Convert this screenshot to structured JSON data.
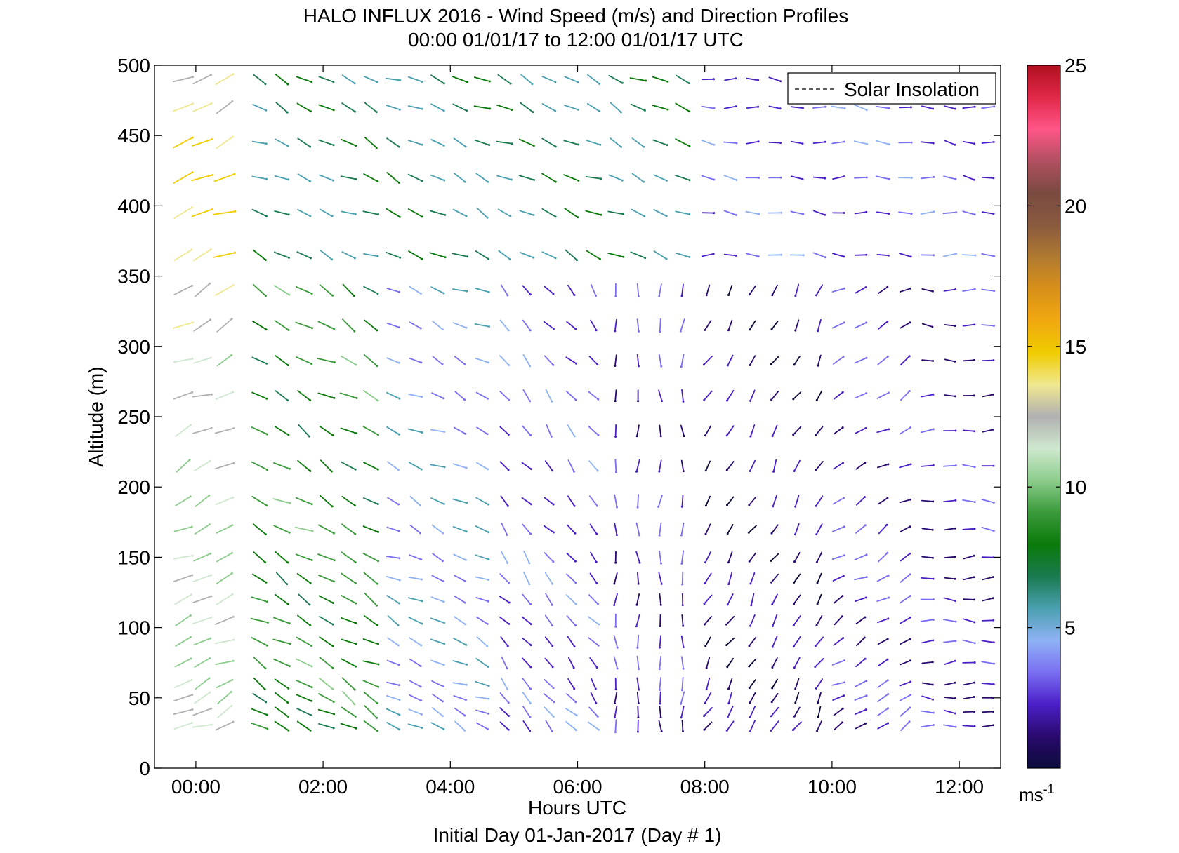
{
  "chart_data": {
    "type": "quiver",
    "title": "HALO INFLUX 2016 - Wind Speed (m/s) and Direction Profiles",
    "subtitle": "00:00 01/01/17 to 12:00 01/01/17  UTC",
    "xlabel": "Hours UTC",
    "xlabel2": "Initial Day 01-Jan-2017 (Day # 1)",
    "ylabel": "Altitude (m)",
    "xlim": [
      -0.65,
      12.65
    ],
    "ylim": [
      0,
      500
    ],
    "xticks": [
      0,
      2,
      4,
      6,
      8,
      10,
      12
    ],
    "xtick_labels": [
      "00:00",
      "02:00",
      "04:00",
      "06:00",
      "08:00",
      "10:00",
      "12:00"
    ],
    "yticks": [
      0,
      50,
      100,
      150,
      200,
      250,
      300,
      350,
      400,
      450,
      500
    ],
    "ytick_labels": [
      "0",
      "50",
      "100",
      "150",
      "200",
      "250",
      "300",
      "350",
      "400",
      "450",
      "500"
    ],
    "legend": {
      "entries": [
        "Solar Insolation"
      ],
      "position": "top-right",
      "style": "dashed"
    },
    "colorbar": {
      "range": [
        0,
        25
      ],
      "ticks": [
        5,
        10,
        15,
        20,
        25
      ],
      "tick_labels": [
        "5",
        "10",
        "15",
        "20",
        "25"
      ],
      "unit": "ms",
      "unit_sup": "-1",
      "colors": [
        "#0b0b3a",
        "#2a0a6e",
        "#4b1fc7",
        "#7a6ff2",
        "#8fb2f4",
        "#4aa0b0",
        "#1a7a50",
        "#0a7a0a",
        "#3a9a3a",
        "#8ccc8c",
        "#cfe8cf",
        "#b0b0b0",
        "#f0e890",
        "#f0cc00",
        "#f0a810",
        "#d8901a",
        "#b07a30",
        "#8a5a40",
        "#7a4a40",
        "#b05060",
        "#ff5588",
        "#e02848",
        "#b01020"
      ]
    },
    "times": [
      -0.2,
      0.1,
      0.45,
      1.0,
      1.35,
      1.7,
      2.05,
      2.4,
      2.75,
      3.1,
      3.45,
      3.8,
      4.15,
      4.5,
      4.85,
      5.2,
      5.55,
      5.9,
      6.25,
      6.6,
      6.95,
      7.3,
      7.65,
      8.05,
      8.4,
      8.75,
      9.1,
      9.45,
      9.8,
      10.1,
      10.45,
      10.8,
      11.15,
      11.5,
      11.85,
      12.15,
      12.45
    ],
    "altitudes": [
      30,
      40,
      50,
      60,
      75,
      90,
      105,
      120,
      135,
      150,
      170,
      190,
      215,
      240,
      265,
      290,
      315,
      340,
      365,
      395,
      420,
      445,
      470,
      490
    ],
    "regimes": [
      {
        "t_min": -1,
        "t_max": 0.8,
        "direction_deg": 245,
        "speed_ms": 11.0
      },
      {
        "t_min": 0.8,
        "t_max": 3.0,
        "direction_deg": 300,
        "speed_ms": 8.5
      },
      {
        "t_min": 3.0,
        "t_max": 4.8,
        "direction_deg": 295,
        "speed_ms": 4.5
      },
      {
        "t_min": 4.8,
        "t_max": 6.5,
        "direction_deg": 320,
        "speed_ms": 3.0
      },
      {
        "t_min": 6.5,
        "t_max": 8.0,
        "direction_deg": 0,
        "speed_ms": 2.5
      },
      {
        "t_min": 8.0,
        "t_max": 10.0,
        "direction_deg": 30,
        "speed_ms": 1.5
      },
      {
        "t_min": 10.0,
        "t_max": 11.5,
        "direction_deg": 240,
        "speed_ms": 2.5
      },
      {
        "t_min": 11.5,
        "t_max": 13,
        "direction_deg": 270,
        "speed_ms": 2.0
      }
    ],
    "upper_regimes": [
      {
        "alt_min": 350,
        "t_min": 0.8,
        "t_max": 8.0,
        "direction_deg": 295,
        "speed_ms": 6.5
      },
      {
        "alt_min": 350,
        "t_min": 8.0,
        "t_max": 13,
        "direction_deg": 275,
        "speed_ms": 3.0
      }
    ]
  }
}
